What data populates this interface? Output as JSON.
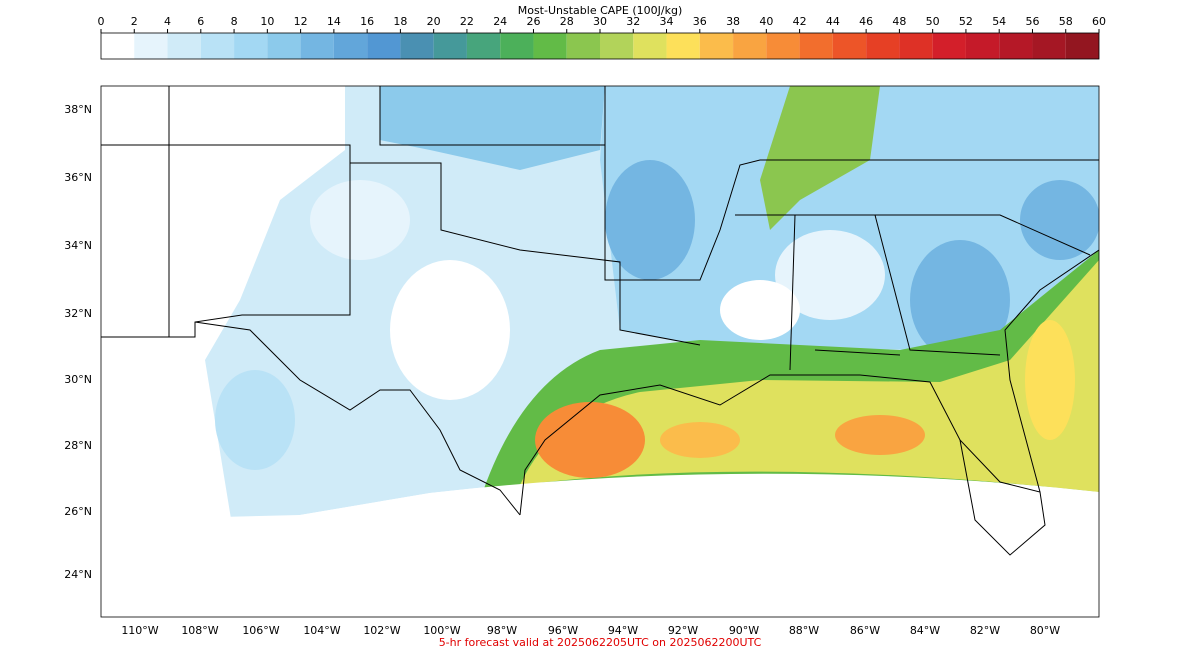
{
  "colorbar": {
    "title": "Most-Unstable CAPE (100J/kg)",
    "ticks": [
      0,
      2,
      4,
      6,
      8,
      10,
      12,
      14,
      16,
      18,
      20,
      22,
      24,
      26,
      28,
      30,
      32,
      34,
      36,
      38,
      40,
      42,
      44,
      46,
      48,
      50,
      52,
      54,
      56,
      58,
      60
    ],
    "colors": [
      "#ffffff",
      "#e6f4fc",
      "#d0ebf8",
      "#b9e2f6",
      "#a3d8f3",
      "#8ccaeb",
      "#74b6e2",
      "#62a6da",
      "#5297d3",
      "#4a90b2",
      "#45999a",
      "#47a57c",
      "#4cb05a",
      "#62bb47",
      "#8bc64f",
      "#b2d35a",
      "#dfe15e",
      "#fde05a",
      "#fbbc4b",
      "#f9a441",
      "#f78c37",
      "#f26e2d",
      "#ed5528",
      "#e64025",
      "#de3126",
      "#d31f2a",
      "#c51a29",
      "#b51827",
      "#a51724",
      "#931620"
    ]
  },
  "map": {
    "lat_labels": [
      "38°N",
      "36°N",
      "34°N",
      "32°N",
      "30°N",
      "28°N",
      "26°N",
      "24°N"
    ],
    "lon_labels": [
      "110°W",
      "108°W",
      "106°W",
      "104°W",
      "102°W",
      "100°W",
      "98°W",
      "96°W",
      "94°W",
      "92°W",
      "90°W",
      "88°W",
      "86°W",
      "84°W",
      "82°W",
      "80°W"
    ]
  },
  "footer": "5-hr forecast valid at 2025062205UTC on 2025062200UTC"
}
